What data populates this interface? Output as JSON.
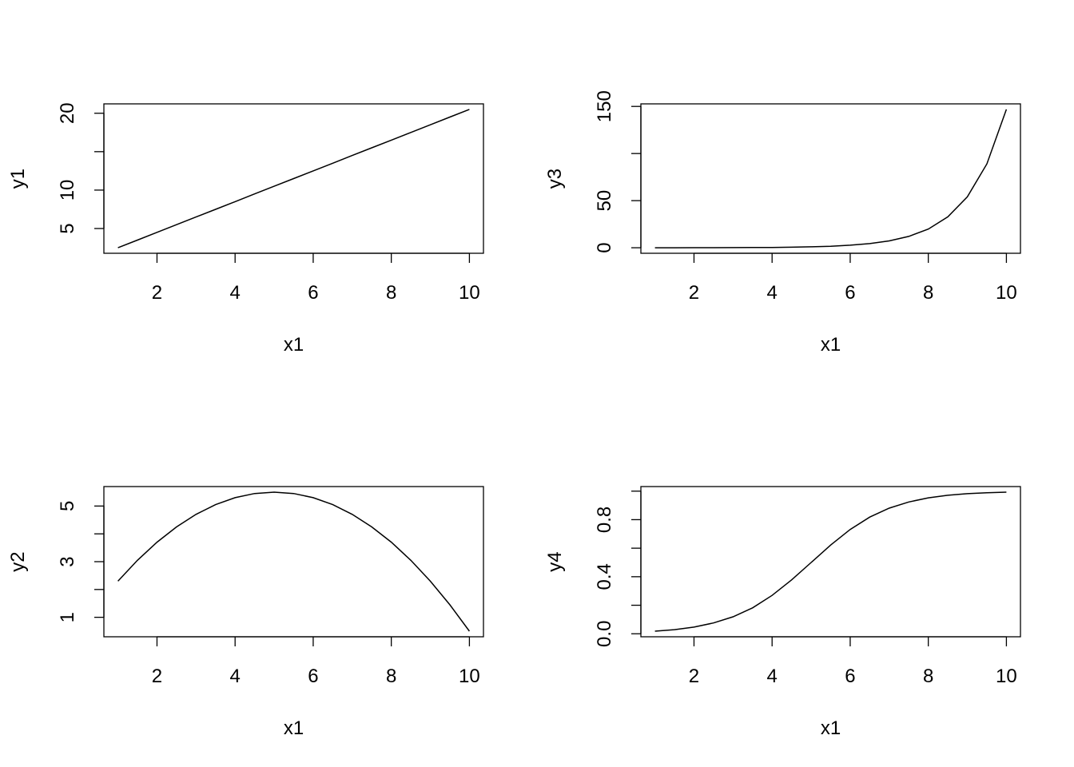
{
  "chart_data": [
    {
      "type": "line",
      "xlabel": "x1",
      "ylabel": "y1",
      "xlim": [
        0.64,
        10.36
      ],
      "ylim": [
        1.78,
        21.22
      ],
      "xticks": [
        2,
        4,
        6,
        8,
        10
      ],
      "xtick_labels": [
        "2",
        "4",
        "6",
        "8",
        "10"
      ],
      "yticks": [
        5,
        10,
        15,
        20
      ],
      "ytick_labels": [
        "5",
        "10",
        "",
        "20"
      ],
      "x": [
        1,
        1.5,
        2,
        2.5,
        3,
        3.5,
        4,
        4.5,
        5,
        5.5,
        6,
        6.5,
        7,
        7.5,
        8,
        8.5,
        9,
        9.5,
        10
      ],
      "y": [
        2.5,
        3.5,
        4.5,
        5.5,
        6.5,
        7.5,
        8.5,
        9.5,
        10.5,
        11.5,
        12.5,
        13.5,
        14.5,
        15.5,
        16.5,
        17.5,
        18.5,
        19.5,
        20.5
      ],
      "color": "#000000"
    },
    {
      "type": "line",
      "xlabel": "x1",
      "ylabel": "y3",
      "xlim": [
        0.64,
        10.36
      ],
      "ylim": [
        -5.86,
        152.72
      ],
      "xticks": [
        2,
        4,
        6,
        8,
        10
      ],
      "xtick_labels": [
        "2",
        "4",
        "6",
        "8",
        "10"
      ],
      "yticks": [
        0,
        50,
        100,
        150
      ],
      "ytick_labels": [
        "0",
        "50",
        "",
        "150"
      ],
      "x": [
        1,
        1.5,
        2,
        2.5,
        3,
        3.5,
        4,
        4.5,
        5,
        5.5,
        6,
        6.5,
        7,
        7.5,
        8,
        8.5,
        9,
        9.5,
        10
      ],
      "y": [
        0.018,
        0.03,
        0.049,
        0.081,
        0.134,
        0.221,
        0.364,
        0.6,
        0.989,
        1.631,
        2.69,
        4.434,
        7.311,
        12.05,
        19.87,
        32.77,
        54.02,
        89.06,
        146.84
      ],
      "color": "#000000"
    },
    {
      "type": "line",
      "xlabel": "x1",
      "ylabel": "y2",
      "xlim": [
        0.64,
        10.36
      ],
      "ylim": [
        0.3,
        5.7
      ],
      "xticks": [
        2,
        4,
        6,
        8,
        10
      ],
      "xtick_labels": [
        "2",
        "4",
        "6",
        "8",
        "10"
      ],
      "yticks": [
        1,
        2,
        3,
        4,
        5
      ],
      "ytick_labels": [
        "1",
        "",
        "3",
        "",
        "5"
      ],
      "x": [
        1,
        1.5,
        2,
        2.5,
        3,
        3.5,
        4,
        4.5,
        5,
        5.5,
        6,
        6.5,
        7,
        7.5,
        8,
        8.5,
        9,
        9.5,
        10
      ],
      "y": [
        2.3,
        3.05,
        3.7,
        4.25,
        4.7,
        5.05,
        5.3,
        5.45,
        5.5,
        5.45,
        5.3,
        5.05,
        4.7,
        4.25,
        3.7,
        3.05,
        2.3,
        1.45,
        0.5
      ],
      "color": "#000000"
    },
    {
      "type": "line",
      "xlabel": "x1",
      "ylabel": "y4",
      "xlim": [
        0.64,
        10.36
      ],
      "ylim": [
        -0.021,
        1.032
      ],
      "xticks": [
        2,
        4,
        6,
        8,
        10
      ],
      "xtick_labels": [
        "2",
        "4",
        "6",
        "8",
        "10"
      ],
      "yticks": [
        0,
        0.2,
        0.4,
        0.6,
        0.8,
        1.0
      ],
      "ytick_labels": [
        "0.0",
        "",
        "0.4",
        "",
        "0.8",
        ""
      ],
      "x": [
        1,
        1.5,
        2,
        2.5,
        3,
        3.5,
        4,
        4.5,
        5,
        5.5,
        6,
        6.5,
        7,
        7.5,
        8,
        8.5,
        9,
        9.5,
        10
      ],
      "y": [
        0.018,
        0.029,
        0.047,
        0.076,
        0.119,
        0.182,
        0.269,
        0.378,
        0.5,
        0.622,
        0.731,
        0.818,
        0.881,
        0.924,
        0.953,
        0.971,
        0.982,
        0.989,
        0.993
      ],
      "color": "#000000"
    }
  ]
}
